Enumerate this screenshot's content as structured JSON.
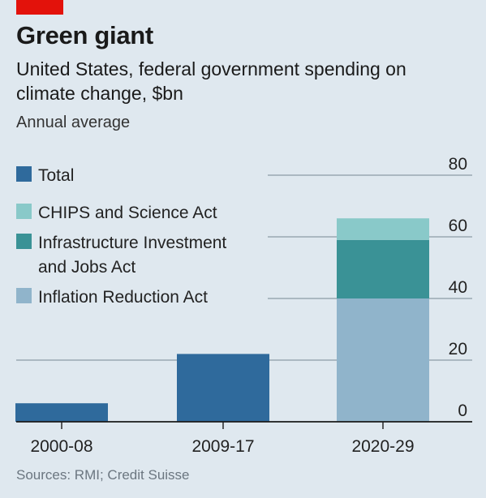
{
  "header": {
    "title": "Green giant",
    "subtitle": "United States, federal government spending on climate change, $bn",
    "note": "Annual average"
  },
  "footer": {
    "source": "Sources: RMI; Credit Suisse"
  },
  "colors": {
    "total": "#2f6a9c",
    "chips": "#89c9c9",
    "infrastructure": "#3a9296",
    "ira": "#90b4cb",
    "grid": "#9aa7b2",
    "axis": "#1a1a1a"
  },
  "chart_data": {
    "type": "bar",
    "categories": [
      "2000-08",
      "2009-17",
      "2020-29"
    ],
    "series": [
      {
        "key": "total",
        "name": "Total",
        "values": [
          6,
          22,
          null
        ]
      },
      {
        "key": "ira",
        "name": "Inflation Reduction Act",
        "values": [
          null,
          null,
          40
        ]
      },
      {
        "key": "infrastructure",
        "name": "Infrastructure Investment and Jobs Act",
        "values": [
          null,
          null,
          19
        ]
      },
      {
        "key": "chips",
        "name": "CHIPS and Science Act",
        "values": [
          null,
          null,
          7
        ]
      }
    ],
    "legend": [
      {
        "key": "total",
        "label": "Total"
      },
      {
        "key": "chips",
        "label": "CHIPS and Science Act"
      },
      {
        "key": "infrastructure",
        "label_lines": [
          "Infrastructure Investment",
          "and Jobs Act"
        ]
      },
      {
        "key": "ira",
        "label": "Inflation Reduction Act"
      }
    ],
    "yticks": [
      0,
      20,
      40,
      60,
      80
    ],
    "ylim": [
      0,
      80
    ],
    "grid": true,
    "legend_position": "top-left",
    "y_axis_position": "right"
  }
}
